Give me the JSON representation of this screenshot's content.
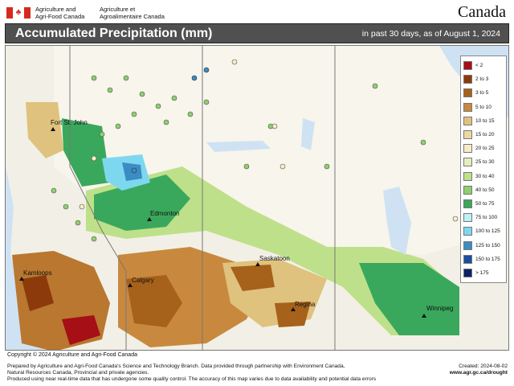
{
  "header": {
    "dept_en_line1": "Agriculture and",
    "dept_en_line2": "Agri-Food Canada",
    "dept_fr_line1": "Agriculture et",
    "dept_fr_line2": "Agroalimentaire Canada",
    "wordmark": "Canada"
  },
  "titlebar": {
    "title": "Accumulated Precipitation (mm)",
    "subtitle": "in past 30 days, as of August 1, 2024"
  },
  "legend": {
    "items": [
      {
        "label": "< 2",
        "color": "#a50f15"
      },
      {
        "label": "2 to 3",
        "color": "#8c3a0c"
      },
      {
        "label": "3 to 5",
        "color": "#a6611a"
      },
      {
        "label": "5 to 10",
        "color": "#c8893e"
      },
      {
        "label": "10 to 15",
        "color": "#dfc27d"
      },
      {
        "label": "15 to 20",
        "color": "#ecd9a0"
      },
      {
        "label": "20 to 25",
        "color": "#f6ecc6"
      },
      {
        "label": "25 to 30",
        "color": "#e3efc0"
      },
      {
        "label": "30 to 40",
        "color": "#bfe08a"
      },
      {
        "label": "40 to 50",
        "color": "#8fcf6d"
      },
      {
        "label": "50 to 75",
        "color": "#3aa85c"
      },
      {
        "label": "75 to 100",
        "color": "#bff0f7"
      },
      {
        "label": "100 to 125",
        "color": "#7dd8ef"
      },
      {
        "label": "125 to 150",
        "color": "#3b8cc4"
      },
      {
        "label": "150 to 175",
        "color": "#1a4f9c"
      },
      {
        "label": "> 175",
        "color": "#0b2366"
      }
    ]
  },
  "cities": {
    "fort_st_john": "Fort St. John",
    "edmonton": "Edmonton",
    "saskatoon": "Saskatoon",
    "kamloops": "Kamloops",
    "calgary": "Calgary",
    "regina": "Regina",
    "winnipeg": "Winnipeg"
  },
  "colors": {
    "water": "#cfe2f3",
    "land_base": "#f6ecc6",
    "titlebar": "#505050"
  },
  "footer": {
    "copyright": "Copyright © 2024 Agriculture and Agri-Food Canada",
    "line1": "Prepared by Agriculture and Agri-Food Canada's Science and Technology Branch. Data provided through partnership with Environment Canada,",
    "line2": "Natural Resources Canada, Provincial and private agencies.",
    "line3": "Produced using near real-time data that has undergone some quality control. The accuracy of this map varies due to data availability and potential data errors",
    "created": "Created: 2024-08-02",
    "url": "www.agr.gc.ca/drought"
  }
}
